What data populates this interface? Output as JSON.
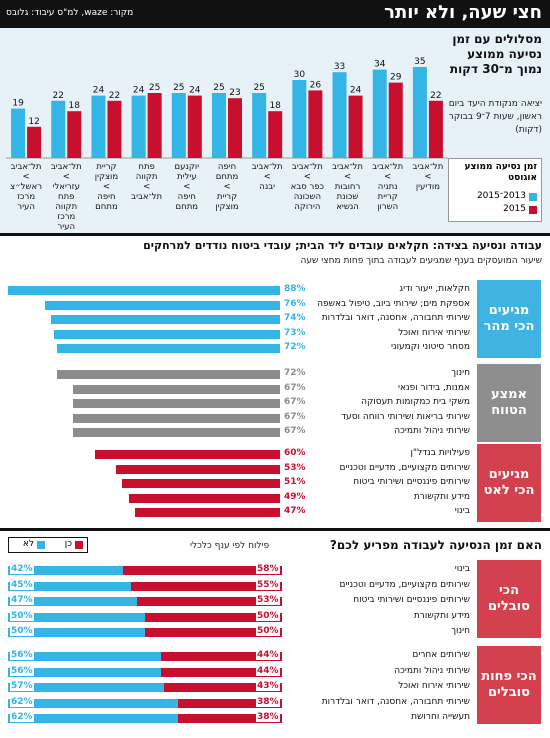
{
  "header": {
    "title": "חצי שעה, ולא יותר",
    "source": "מקור: waze, למ\"ס  עיבוד: גלובס"
  },
  "colors": {
    "blue": "#33b5e5",
    "red": "#c8102e",
    "gray": "#8c8c8c",
    "cat_blue": "#3fb4e3",
    "cat_gray": "#8e8e8e",
    "cat_red": "#d3414f",
    "panel_bg": "#e6f1f8"
  },
  "chart_data": [
    {
      "type": "bar",
      "title": "מסלולים עם זמן נסיעה ממוצע נמוך מ־30 דקות",
      "subtitle": "יציאה מנקודת היעד ביום ראשון, שעות 7־9 בבוקר (דקות)",
      "legend_title": "זמן נסיעה ממוצע אוגוסט",
      "categories": [
        "תל־אביב > מודיעין",
        "תל־אביב > נתניה קריית השרון",
        "תל־אביב > רחובות שכונת הנשיא",
        "תל־אביב > כפר סבא השכונה הירוקה",
        "תל־אביב > יבנה",
        "חיפה מתחם > קריית מוצקין",
        "יוקנעם עילית > חיפה מתחם",
        "פתח תקווה > תל־אביב",
        "קריית מוצקין > חיפה מתחם",
        "תל־אביב > עזריאלי פתח תקווה מרכז העיר",
        "תל־אביב > ראשל״צ מרכז העיר"
      ],
      "series": [
        {
          "name": "2013־2015",
          "values": [
            35,
            34,
            33,
            30,
            25,
            25,
            25,
            24,
            24,
            22,
            19
          ]
        },
        {
          "name": "2015",
          "values": [
            22,
            29,
            24,
            26,
            18,
            23,
            24,
            25,
            22,
            18,
            12
          ]
        }
      ]
    },
    {
      "type": "bar",
      "title": "עבודה ונסיעה בצידה: חקלאים עובדים ליד הבית; עובדי ביטוח נודדים למרחקים",
      "subtitle": "שיעור המועסקים בענף שמגיעים לעבודה בתוך פחות מחצי שעה",
      "groups": [
        {
          "name": "מגיעים הכי מהר",
          "rows": [
            {
              "label": "חקלאות, ייעור ודיג",
              "value": 88
            },
            {
              "label": "אספקת מים; שירותי ביוב, טיפול באשפה",
              "value": 76
            },
            {
              "label": "שירותי תחבורה, אחסנה, דואר ובלדרות",
              "value": 74
            },
            {
              "label": "שירותי אירוח ואוכל",
              "value": 73
            },
            {
              "label": "מסחר סיטוני וקמעוני",
              "value": 72
            }
          ]
        },
        {
          "name": "אמצע הטווח",
          "rows": [
            {
              "label": "חינוך",
              "value": 72
            },
            {
              "label": "אמנות, בידור ופנאי",
              "value": 67
            },
            {
              "label": "משקי בית כמקומות תעסוקה",
              "value": 67
            },
            {
              "label": "שירותי בריאות ושירותי רווחה וסעד",
              "value": 67
            },
            {
              "label": "שירותי ניהול ותמיכה",
              "value": 67
            }
          ]
        },
        {
          "name": "מגיעים הכי לאט",
          "rows": [
            {
              "label": "פעילויות בנדל\"ן",
              "value": 60
            },
            {
              "label": "שירותים מקצועיים, מדעיים וטכניים",
              "value": 53
            },
            {
              "label": "שירותים פיננסיים ושירותי ביטוח",
              "value": 51
            },
            {
              "label": "מידע ותקשורת",
              "value": 49
            },
            {
              "label": "בינוי",
              "value": 47
            }
          ]
        }
      ]
    },
    {
      "type": "bar",
      "title": "האם זמן הנסיעה לעבודה מפריע לכם?",
      "subtitle": "פילוח לפי ענף כלכלי",
      "legend": [
        "כן",
        "לא"
      ],
      "groups": [
        {
          "name": "הכי סובלים",
          "rows": [
            {
              "label": "בינוי",
              "yes": 58,
              "no": 42
            },
            {
              "label": "שירותים מקצועיים, מדעיים וטכניים",
              "yes": 55,
              "no": 45
            },
            {
              "label": "שירותים פיננסיים ושירותי ביטוח",
              "yes": 53,
              "no": 47
            },
            {
              "label": "מידע ותקשורת",
              "yes": 50,
              "no": 50
            },
            {
              "label": "חינוך",
              "yes": 50,
              "no": 50
            }
          ]
        },
        {
          "name": "הכי פחות סובלים",
          "rows": [
            {
              "label": "שירותים אחרים",
              "yes": 44,
              "no": 56
            },
            {
              "label": "שירותי ניהול ותמיכה",
              "yes": 44,
              "no": 56
            },
            {
              "label": "שירותי אירוח ואוכל",
              "yes": 43,
              "no": 57
            },
            {
              "label": "שירותי תחבורה, אחסנה, דואר ובלדרות",
              "yes": 38,
              "no": 62
            },
            {
              "label": "תעשייה וחרושת",
              "yes": 38,
              "no": 62
            }
          ]
        }
      ]
    }
  ]
}
